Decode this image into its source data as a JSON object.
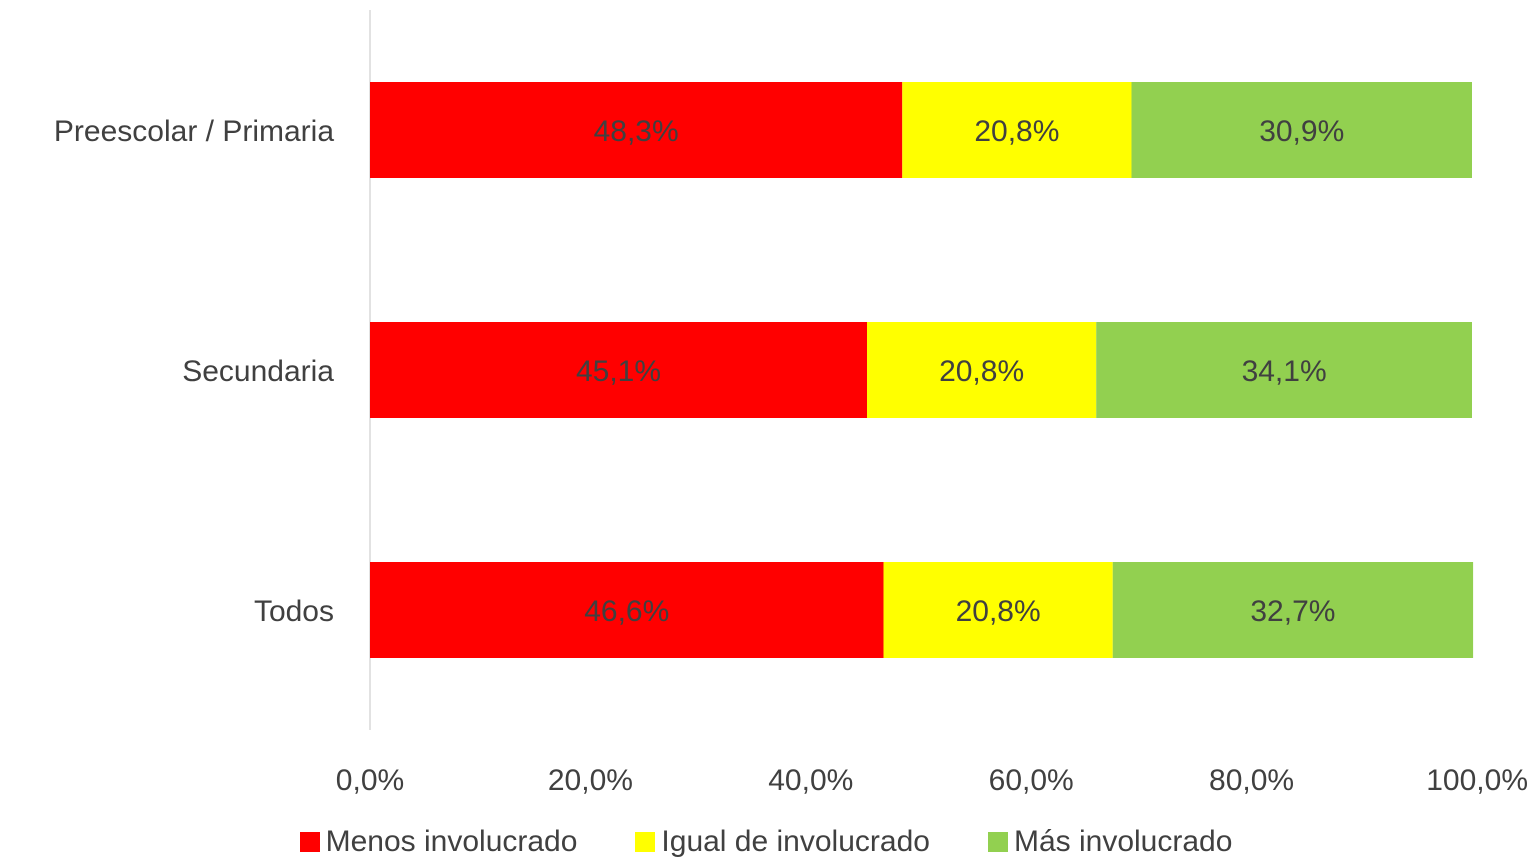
{
  "chart_data": {
    "type": "bar",
    "orientation": "horizontal",
    "stacked": "percent",
    "categories": [
      "Preescolar / Primaria",
      "Secundaria",
      "Todos"
    ],
    "series": [
      {
        "name": "Menos involucrado",
        "color": "#ff0000",
        "values": [
          48.3,
          45.1,
          46.6
        ],
        "labels": [
          "48,3%",
          "45,1%",
          "46,6%"
        ]
      },
      {
        "name": "Igual de involucrado",
        "color": "#ffff00",
        "values": [
          20.8,
          20.8,
          20.8
        ],
        "labels": [
          "20,8%",
          "20,8%",
          "20,8%"
        ]
      },
      {
        "name": "Más involucrado",
        "color": "#92d050",
        "values": [
          30.9,
          34.1,
          32.7
        ],
        "labels": [
          "30,9%",
          "34,1%",
          "32,7%"
        ]
      }
    ],
    "xlim": [
      0,
      100
    ],
    "ticks": [
      0,
      20,
      40,
      60,
      80,
      100
    ],
    "tick_labels": [
      "0,0%",
      "20,0%",
      "40,0%",
      "60,0%",
      "80,0%",
      "100,0%"
    ],
    "legend_position": "bottom",
    "grid": false,
    "title": "",
    "xlabel": "",
    "ylabel": ""
  }
}
